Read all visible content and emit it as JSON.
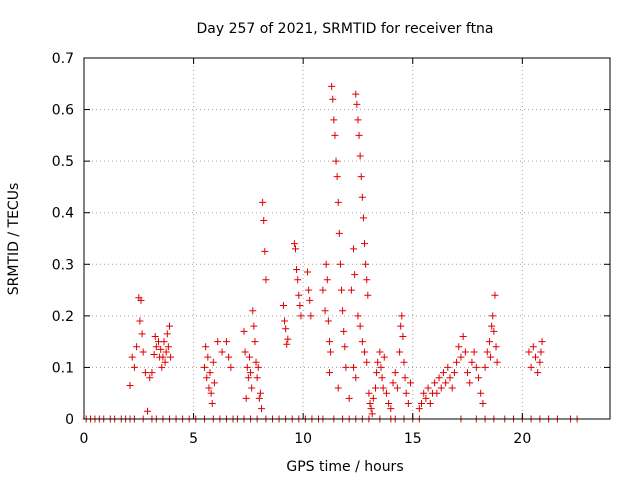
{
  "chart_data": {
    "type": "scatter",
    "title": "Day 257 of 2021, SRMTID for receiver ftna",
    "xlabel": "GPS time / hours",
    "ylabel": "SRMTID / TECUs",
    "xlim": [
      0,
      24
    ],
    "ylim": [
      0,
      0.7
    ],
    "xticks": [
      0,
      5,
      10,
      15,
      20
    ],
    "yticks": [
      0,
      0.1,
      0.2,
      0.3,
      0.4,
      0.5,
      0.6,
      0.7
    ],
    "xtick_labels": [
      "0",
      "5",
      "10",
      "15",
      "20"
    ],
    "ytick_labels": [
      "0",
      "0.1",
      "0.2",
      "0.3",
      "0.4",
      "0.5",
      "0.6",
      "0.7"
    ],
    "grid": true,
    "marker": "+",
    "color": "#e00000",
    "series": [
      {
        "name": "SRMTID",
        "points": [
          [
            0.1,
            0
          ],
          [
            0.3,
            0
          ],
          [
            0.5,
            0
          ],
          [
            0.7,
            0
          ],
          [
            0.9,
            0
          ],
          [
            1.2,
            0
          ],
          [
            1.4,
            0
          ],
          [
            1.7,
            0
          ],
          [
            1.9,
            0
          ],
          [
            2.1,
            0
          ],
          [
            2.3,
            0
          ],
          [
            2.7,
            0
          ],
          [
            3.1,
            0
          ],
          [
            3.3,
            0
          ],
          [
            3.6,
            0
          ],
          [
            3.9,
            0
          ],
          [
            4.2,
            0
          ],
          [
            4.5,
            0
          ],
          [
            4.8,
            0
          ],
          [
            5.1,
            0
          ],
          [
            5.5,
            0
          ],
          [
            5.9,
            0
          ],
          [
            6.2,
            0
          ],
          [
            6.5,
            0
          ],
          [
            6.8,
            0
          ],
          [
            7.0,
            0
          ],
          [
            7.3,
            0
          ],
          [
            7.6,
            0
          ],
          [
            7.9,
            0
          ],
          [
            8.3,
            0
          ],
          [
            8.6,
            0
          ],
          [
            8.9,
            0
          ],
          [
            9.2,
            0
          ],
          [
            9.5,
            0
          ],
          [
            9.8,
            0
          ],
          [
            10.1,
            0
          ],
          [
            10.4,
            0
          ],
          [
            10.7,
            0
          ],
          [
            10.9,
            0
          ],
          [
            11.4,
            0
          ],
          [
            11.8,
            0
          ],
          [
            12.1,
            0
          ],
          [
            12.4,
            0
          ],
          [
            12.7,
            0
          ],
          [
            13.0,
            0
          ],
          [
            13.5,
            0
          ],
          [
            14.0,
            0
          ],
          [
            14.2,
            0
          ],
          [
            14.6,
            0
          ],
          [
            15.0,
            0
          ],
          [
            15.3,
            0
          ],
          [
            17.2,
            0
          ],
          [
            17.9,
            0
          ],
          [
            18.3,
            0
          ],
          [
            18.7,
            0
          ],
          [
            19.2,
            0
          ],
          [
            19.6,
            0
          ],
          [
            20.0,
            0
          ],
          [
            20.4,
            0
          ],
          [
            20.8,
            0
          ],
          [
            21.2,
            0
          ],
          [
            21.6,
            0
          ],
          [
            22.2,
            0
          ],
          [
            22.5,
            0
          ],
          [
            2.1,
            0.065
          ],
          [
            2.2,
            0.12
          ],
          [
            2.3,
            0.1
          ],
          [
            2.4,
            0.14
          ],
          [
            2.5,
            0.235
          ],
          [
            2.55,
            0.19
          ],
          [
            2.6,
            0.23
          ],
          [
            2.65,
            0.165
          ],
          [
            2.7,
            0.13
          ],
          [
            2.8,
            0.09
          ],
          [
            2.9,
            0.015
          ],
          [
            3.0,
            0.08
          ],
          [
            3.1,
            0.09
          ],
          [
            3.2,
            0.125
          ],
          [
            3.25,
            0.16
          ],
          [
            3.3,
            0.14
          ],
          [
            3.4,
            0.15
          ],
          [
            3.45,
            0.12
          ],
          [
            3.5,
            0.135
          ],
          [
            3.55,
            0.1
          ],
          [
            3.6,
            0.12
          ],
          [
            3.65,
            0.15
          ],
          [
            3.7,
            0.11
          ],
          [
            3.75,
            0.13
          ],
          [
            3.8,
            0.165
          ],
          [
            3.85,
            0.14
          ],
          [
            3.9,
            0.18
          ],
          [
            3.95,
            0.12
          ],
          [
            5.5,
            0.1
          ],
          [
            5.55,
            0.14
          ],
          [
            5.6,
            0.08
          ],
          [
            5.65,
            0.12
          ],
          [
            5.7,
            0.06
          ],
          [
            5.75,
            0.09
          ],
          [
            5.8,
            0.05
          ],
          [
            5.85,
            0.03
          ],
          [
            5.9,
            0.11
          ],
          [
            5.95,
            0.07
          ],
          [
            6.1,
            0.15
          ],
          [
            6.3,
            0.13
          ],
          [
            6.5,
            0.15
          ],
          [
            6.6,
            0.12
          ],
          [
            6.7,
            0.1
          ],
          [
            7.3,
            0.17
          ],
          [
            7.35,
            0.13
          ],
          [
            7.4,
            0.04
          ],
          [
            7.45,
            0.1
          ],
          [
            7.5,
            0.08
          ],
          [
            7.55,
            0.12
          ],
          [
            7.6,
            0.09
          ],
          [
            7.65,
            0.06
          ],
          [
            7.7,
            0.21
          ],
          [
            7.75,
            0.18
          ],
          [
            7.8,
            0.15
          ],
          [
            7.85,
            0.11
          ],
          [
            7.9,
            0.08
          ],
          [
            7.95,
            0.1
          ],
          [
            8.0,
            0.04
          ],
          [
            8.05,
            0.05
          ],
          [
            8.1,
            0.02
          ],
          [
            8.15,
            0.42
          ],
          [
            8.2,
            0.385
          ],
          [
            8.25,
            0.325
          ],
          [
            8.3,
            0.27
          ],
          [
            9.1,
            0.22
          ],
          [
            9.15,
            0.19
          ],
          [
            9.2,
            0.175
          ],
          [
            9.25,
            0.145
          ],
          [
            9.3,
            0.155
          ],
          [
            9.6,
            0.34
          ],
          [
            9.65,
            0.33
          ],
          [
            9.7,
            0.29
          ],
          [
            9.75,
            0.27
          ],
          [
            9.8,
            0.24
          ],
          [
            9.85,
            0.22
          ],
          [
            9.9,
            0.2
          ],
          [
            10.2,
            0.285
          ],
          [
            10.25,
            0.25
          ],
          [
            10.3,
            0.23
          ],
          [
            10.35,
            0.2
          ],
          [
            10.9,
            0.25
          ],
          [
            11.0,
            0.21
          ],
          [
            11.05,
            0.3
          ],
          [
            11.1,
            0.27
          ],
          [
            11.15,
            0.19
          ],
          [
            11.2,
            0.15
          ],
          [
            11.25,
            0.13
          ],
          [
            11.3,
            0.645
          ],
          [
            11.35,
            0.62
          ],
          [
            11.4,
            0.58
          ],
          [
            11.45,
            0.55
          ],
          [
            11.5,
            0.5
          ],
          [
            11.55,
            0.47
          ],
          [
            11.6,
            0.42
          ],
          [
            11.65,
            0.36
          ],
          [
            11.7,
            0.3
          ],
          [
            11.75,
            0.25
          ],
          [
            11.8,
            0.21
          ],
          [
            11.85,
            0.17
          ],
          [
            11.9,
            0.14
          ],
          [
            11.95,
            0.1
          ],
          [
            11.6,
            0.06
          ],
          [
            11.2,
            0.09
          ],
          [
            12.1,
            0.04
          ],
          [
            12.2,
            0.25
          ],
          [
            12.3,
            0.33
          ],
          [
            12.35,
            0.28
          ],
          [
            12.4,
            0.63
          ],
          [
            12.45,
            0.61
          ],
          [
            12.5,
            0.58
          ],
          [
            12.55,
            0.55
          ],
          [
            12.6,
            0.51
          ],
          [
            12.65,
            0.47
          ],
          [
            12.7,
            0.43
          ],
          [
            12.75,
            0.39
          ],
          [
            12.8,
            0.34
          ],
          [
            12.85,
            0.3
          ],
          [
            12.9,
            0.27
          ],
          [
            12.95,
            0.24
          ],
          [
            12.5,
            0.2
          ],
          [
            12.6,
            0.18
          ],
          [
            12.7,
            0.15
          ],
          [
            12.8,
            0.13
          ],
          [
            12.9,
            0.11
          ],
          [
            12.3,
            0.1
          ],
          [
            12.4,
            0.08
          ],
          [
            13.0,
            0.05
          ],
          [
            13.05,
            0.03
          ],
          [
            13.1,
            0.02
          ],
          [
            13.15,
            0.01
          ],
          [
            13.2,
            0.04
          ],
          [
            13.3,
            0.06
          ],
          [
            13.35,
            0.09
          ],
          [
            13.4,
            0.11
          ],
          [
            13.5,
            0.13
          ],
          [
            13.55,
            0.1
          ],
          [
            13.6,
            0.08
          ],
          [
            13.65,
            0.06
          ],
          [
            13.7,
            0.12
          ],
          [
            13.8,
            0.05
          ],
          [
            13.9,
            0.03
          ],
          [
            14.0,
            0.02
          ],
          [
            14.1,
            0.07
          ],
          [
            14.2,
            0.09
          ],
          [
            14.3,
            0.06
          ],
          [
            14.4,
            0.13
          ],
          [
            14.45,
            0.18
          ],
          [
            14.5,
            0.2
          ],
          [
            14.55,
            0.16
          ],
          [
            14.6,
            0.11
          ],
          [
            14.65,
            0.08
          ],
          [
            14.7,
            0.05
          ],
          [
            14.8,
            0.03
          ],
          [
            14.9,
            0.07
          ],
          [
            15.3,
            0.02
          ],
          [
            15.4,
            0.03
          ],
          [
            15.5,
            0.05
          ],
          [
            15.6,
            0.04
          ],
          [
            15.7,
            0.06
          ],
          [
            15.8,
            0.03
          ],
          [
            15.9,
            0.05
          ],
          [
            16.0,
            0.07
          ],
          [
            16.1,
            0.05
          ],
          [
            16.2,
            0.08
          ],
          [
            16.3,
            0.06
          ],
          [
            16.4,
            0.09
          ],
          [
            16.5,
            0.07
          ],
          [
            16.6,
            0.1
          ],
          [
            16.7,
            0.08
          ],
          [
            16.8,
            0.06
          ],
          [
            16.9,
            0.09
          ],
          [
            17.0,
            0.11
          ],
          [
            17.1,
            0.14
          ],
          [
            17.2,
            0.12
          ],
          [
            17.3,
            0.16
          ],
          [
            17.4,
            0.13
          ],
          [
            17.5,
            0.09
          ],
          [
            17.6,
            0.07
          ],
          [
            17.7,
            0.11
          ],
          [
            17.8,
            0.13
          ],
          [
            17.9,
            0.1
          ],
          [
            18.0,
            0.08
          ],
          [
            18.1,
            0.05
          ],
          [
            18.2,
            0.03
          ],
          [
            18.3,
            0.1
          ],
          [
            18.4,
            0.13
          ],
          [
            18.5,
            0.15
          ],
          [
            18.55,
            0.12
          ],
          [
            18.6,
            0.18
          ],
          [
            18.65,
            0.2
          ],
          [
            18.7,
            0.17
          ],
          [
            18.75,
            0.24
          ],
          [
            18.8,
            0.14
          ],
          [
            18.85,
            0.11
          ],
          [
            20.3,
            0.13
          ],
          [
            20.4,
            0.1
          ],
          [
            20.5,
            0.14
          ],
          [
            20.6,
            0.12
          ],
          [
            20.7,
            0.09
          ],
          [
            20.8,
            0.11
          ],
          [
            20.85,
            0.13
          ],
          [
            20.9,
            0.15
          ]
        ]
      }
    ]
  }
}
